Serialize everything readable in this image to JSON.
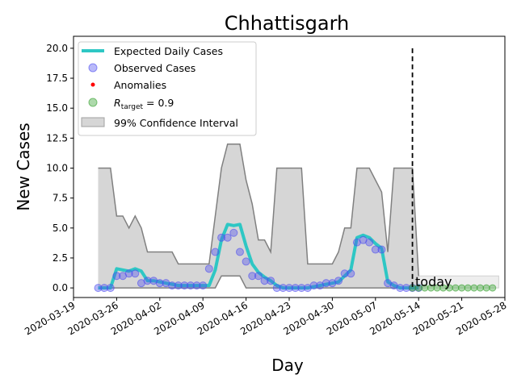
{
  "chart_data": {
    "type": "line",
    "title": "Chhattisgarh",
    "xlabel": "Day",
    "ylabel": "New Cases",
    "x_start": "2020-03-23",
    "xlim": [
      "2020-03-19",
      "2020-05-28"
    ],
    "ylim": [
      -0.8,
      21
    ],
    "yticks": [
      0.0,
      2.5,
      5.0,
      7.5,
      10.0,
      12.5,
      15.0,
      17.5,
      20.0
    ],
    "xticks": [
      "2020-03-19",
      "2020-03-26",
      "2020-04-02",
      "2020-04-09",
      "2020-04-16",
      "2020-04-23",
      "2020-04-30",
      "2020-05-07",
      "2020-05-14",
      "2020-05-21",
      "2020-05-28"
    ],
    "today_date": "2020-05-13",
    "today_label": "today",
    "today_line_top": 20,
    "legend": {
      "position": "upper-left",
      "entries": [
        {
          "label": "Expected Daily Cases",
          "kind": "line"
        },
        {
          "label": "Observed Cases",
          "kind": "marker"
        },
        {
          "label": "Anomalies",
          "kind": "dot"
        },
        {
          "label_prefix": "R",
          "label_sub": "target",
          "label_suffix": " = 0.9",
          "kind": "marker"
        },
        {
          "label": "99% Confidence Interval",
          "kind": "patch"
        }
      ]
    },
    "colors": {
      "expected": "#2ec7c4",
      "observed": "#4f4ff0",
      "anomalies": "#ff0000",
      "target": "#33a02c",
      "ci_fill": "#d6d6d6",
      "ci_edge": "#808080"
    },
    "series": [
      {
        "name": "Observed Cases",
        "values": [
          0,
          0,
          0,
          1,
          1,
          1.2,
          1.2,
          0.4,
          0.6,
          0.6,
          0.4,
          0.4,
          0.2,
          0.2,
          0.2,
          0.2,
          0.2,
          0.2,
          1.6,
          3,
          4.2,
          4.2,
          4.6,
          3,
          2.2,
          1,
          1,
          0.6,
          0.6,
          0,
          0,
          0,
          0,
          0,
          0,
          0.2,
          0.2,
          0.4,
          0.4,
          0.6,
          1.2,
          1.2,
          3.8,
          4,
          3.8,
          3.2,
          3.2,
          0.4,
          0.2,
          0,
          0,
          0,
          0
        ]
      },
      {
        "name": "Expected Daily Cases",
        "values": [
          0,
          0,
          0,
          1.6,
          1.5,
          1.4,
          1.6,
          1.4,
          0.6,
          0.6,
          0.5,
          0.4,
          0.3,
          0.2,
          0.2,
          0.2,
          0.2,
          0.2,
          0.2,
          1.5,
          4,
          5.3,
          5.2,
          5.3,
          3.5,
          2,
          1.3,
          0.9,
          0.6,
          0.2,
          0,
          0,
          0,
          0,
          0,
          0.1,
          0.2,
          0.3,
          0.4,
          0.5,
          1,
          1.5,
          4.2,
          4.4,
          4.2,
          3.7,
          3.3,
          0.5,
          0.2,
          0,
          0,
          0,
          0
        ]
      },
      {
        "name": "99% Confidence Interval",
        "upper": [
          10,
          10,
          10,
          6,
          6,
          5,
          6,
          5,
          3,
          3,
          3,
          3,
          3,
          2,
          2,
          2,
          2,
          2,
          2,
          6,
          10,
          12,
          12,
          12,
          9,
          7,
          4,
          4,
          3,
          10,
          10,
          10,
          10,
          10,
          2,
          2,
          2,
          2,
          2,
          3,
          5,
          5,
          10,
          10,
          10,
          9,
          8,
          3,
          10,
          10,
          10,
          10,
          1
        ],
        "lower": [
          0,
          0,
          0,
          0,
          0,
          0,
          0,
          0,
          0,
          0,
          0,
          0,
          0,
          0,
          0,
          0,
          0,
          0,
          0,
          0,
          1,
          1,
          1,
          1,
          0,
          0,
          0,
          0,
          0,
          0,
          0,
          0,
          0,
          0,
          0,
          0,
          0,
          0,
          0,
          0,
          0,
          0,
          0,
          0,
          0,
          0,
          0,
          0,
          0,
          0,
          0,
          0,
          0
        ]
      },
      {
        "name": "R_target = 0.9",
        "start_date": "2020-05-13",
        "values": [
          0,
          0,
          0,
          0,
          0,
          0,
          0,
          0,
          0,
          0,
          0,
          0,
          0,
          0
        ]
      }
    ],
    "target_band": {
      "start_date": "2020-05-14",
      "end_date": "2020-05-27",
      "upper": 1,
      "lower": 0
    }
  }
}
